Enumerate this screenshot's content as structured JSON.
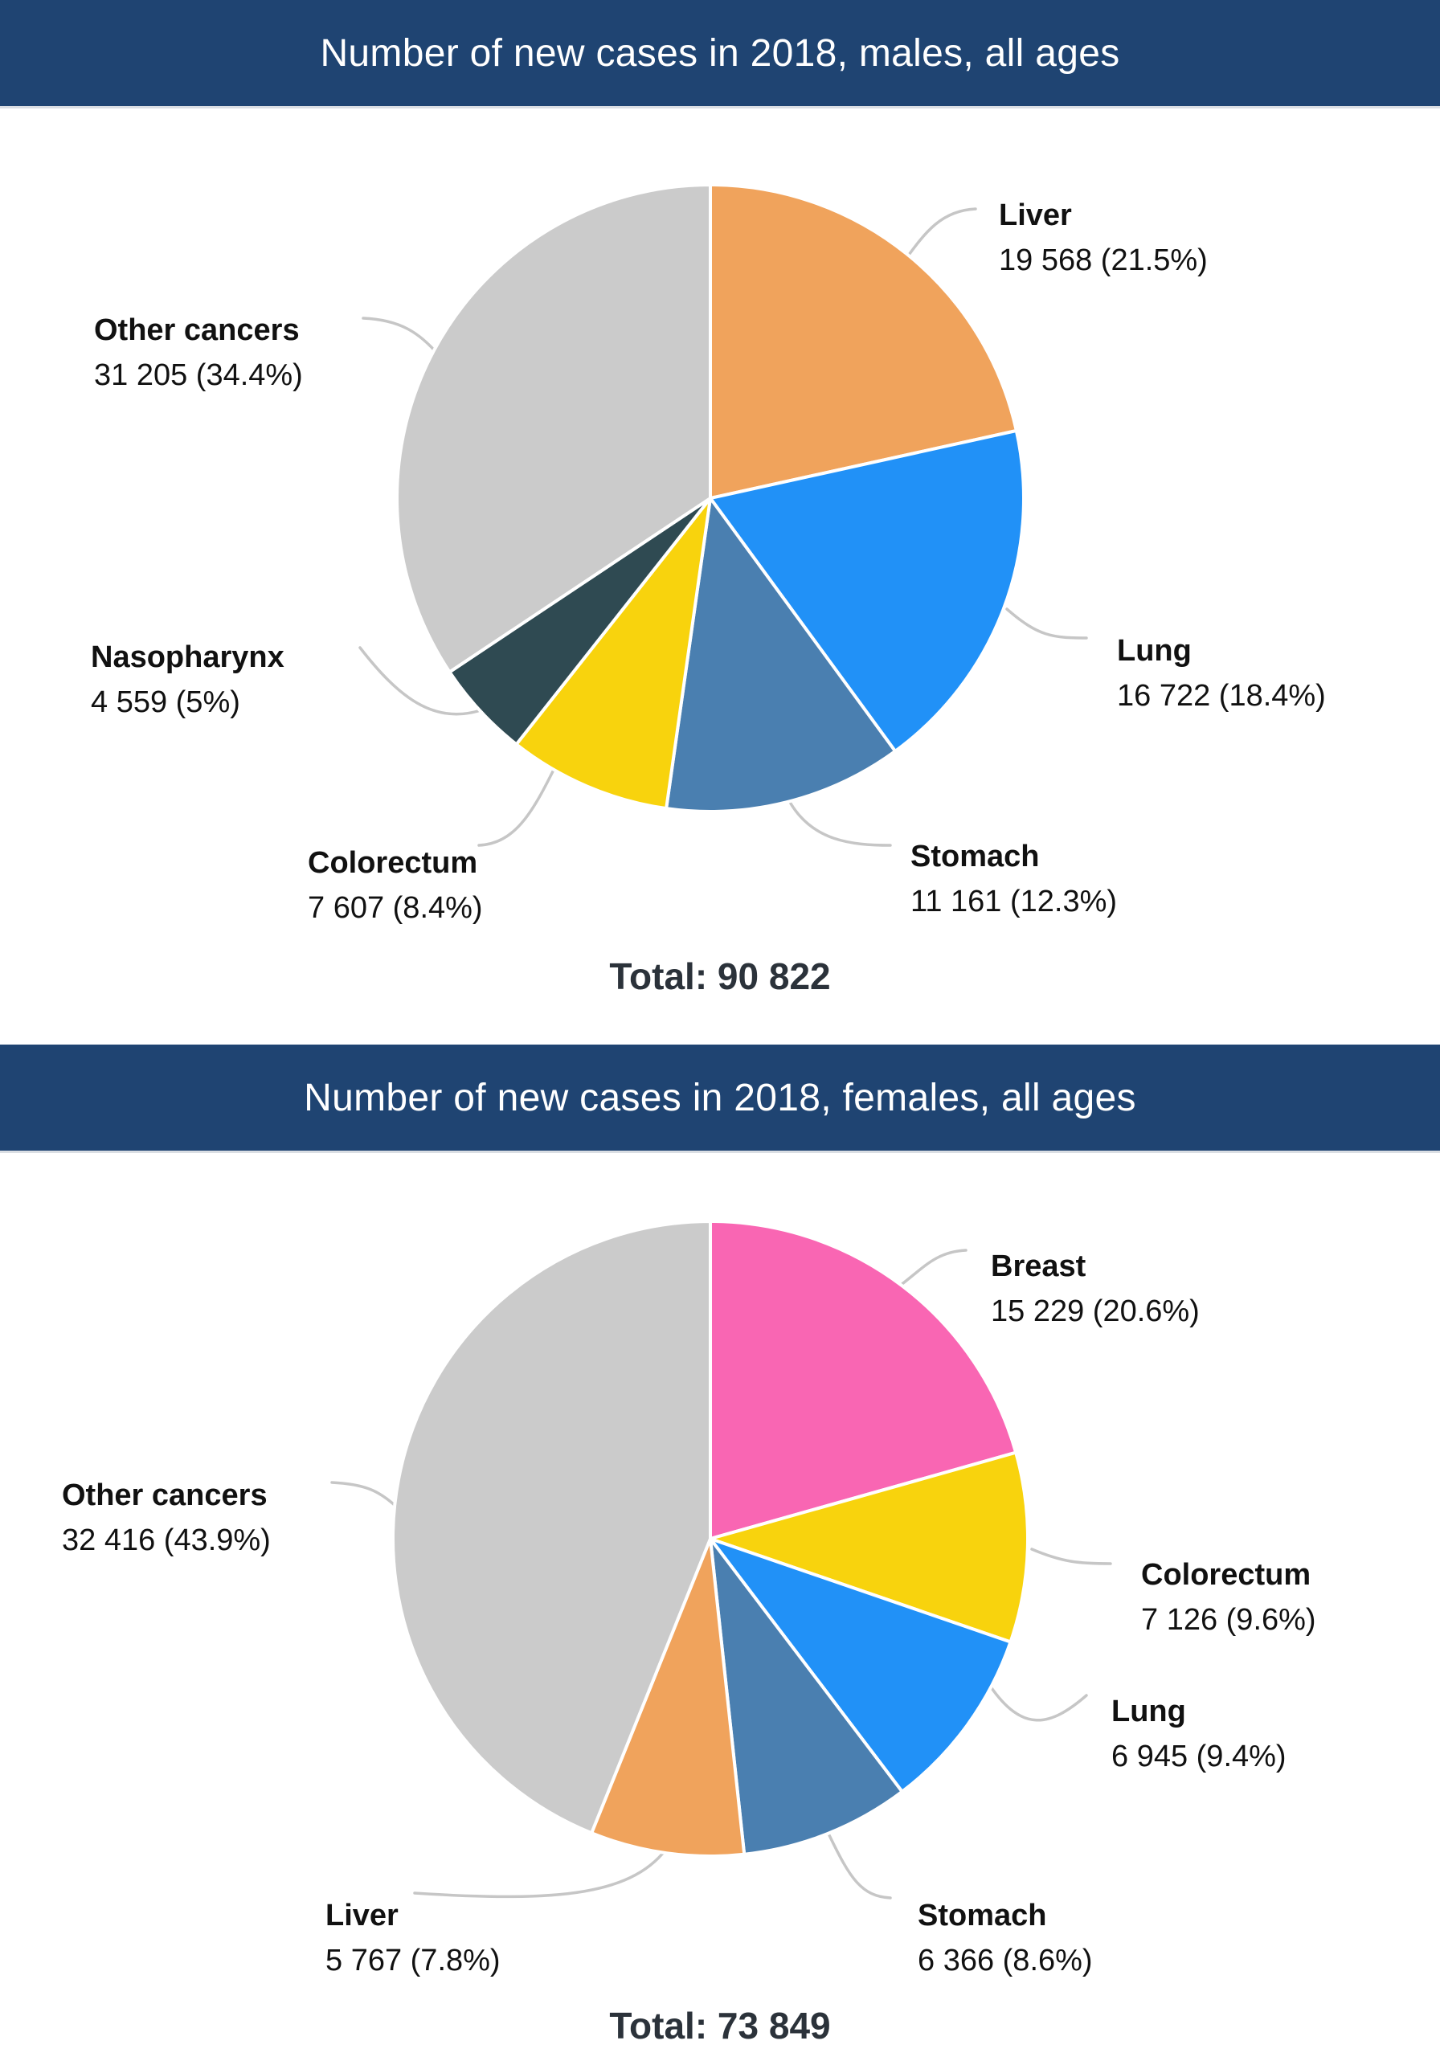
{
  "palette": {
    "header_background": "#1F4472",
    "header_text": "#FFFFFF",
    "label_text": "#111111",
    "total_text": "#2B323A",
    "callout_line": "#C6C6C6",
    "slice_divider": "#FFFFFF"
  },
  "chart_data": [
    {
      "type": "pie",
      "title": "Number of new cases in 2018, males, all ages",
      "total": 90822,
      "total_label": "Total: 90 822",
      "start_angle_deg": 0,
      "direction": "clockwise",
      "legend": "none",
      "labels_style": "callout",
      "slices": [
        {
          "label": "Liver",
          "value": 19568,
          "pct": 21.5,
          "display": "19 568 (21.5%)",
          "color": "#F0A35C"
        },
        {
          "label": "Lung",
          "value": 16722,
          "pct": 18.4,
          "display": "16 722 (18.4%)",
          "color": "#2191F7"
        },
        {
          "label": "Stomach",
          "value": 11161,
          "pct": 12.3,
          "display": "11 161 (12.3%)",
          "color": "#4A7FB0"
        },
        {
          "label": "Colorectum",
          "value": 7607,
          "pct": 8.4,
          "display": "7 607 (8.4%)",
          "color": "#F8D30D"
        },
        {
          "label": "Nasopharynx",
          "value": 4559,
          "pct": 5.0,
          "display": "4 559 (5%)",
          "color": "#2F4A52"
        },
        {
          "label": "Other cancers",
          "value": 31205,
          "pct": 34.4,
          "display": "31 205 (34.4%)",
          "color": "#CBCBCB"
        }
      ]
    },
    {
      "type": "pie",
      "title": "Number of new cases in 2018, females, all ages",
      "total": 73849,
      "total_label": "Total: 73 849",
      "start_angle_deg": 0,
      "direction": "clockwise",
      "legend": "none",
      "labels_style": "callout",
      "slices": [
        {
          "label": "Breast",
          "value": 15229,
          "pct": 20.6,
          "display": "15 229 (20.6%)",
          "color": "#F966B3"
        },
        {
          "label": "Colorectum",
          "value": 7126,
          "pct": 9.6,
          "display": "7 126 (9.6%)",
          "color": "#F8D30D"
        },
        {
          "label": "Lung",
          "value": 6945,
          "pct": 9.4,
          "display": "6 945 (9.4%)",
          "color": "#2191F7"
        },
        {
          "label": "Stomach",
          "value": 6366,
          "pct": 8.6,
          "display": "6 366 (8.6%)",
          "color": "#4A7FB0"
        },
        {
          "label": "Liver",
          "value": 5767,
          "pct": 7.8,
          "display": "5 767 (7.8%)",
          "color": "#F0A35C"
        },
        {
          "label": "Other cancers",
          "value": 32416,
          "pct": 43.9,
          "display": "32 416 (43.9%)",
          "color": "#CBCBCB"
        }
      ]
    }
  ]
}
